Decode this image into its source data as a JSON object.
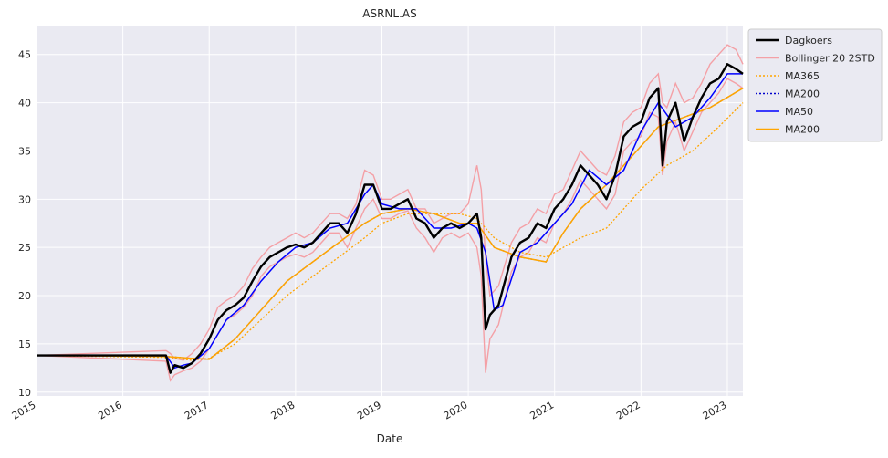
{
  "chart_data": {
    "type": "line",
    "title": "ASRNL.AS",
    "xlabel": "Date",
    "ylabel": "",
    "xlim": [
      2015.0,
      2023.18
    ],
    "ylim": [
      9.6,
      48.0
    ],
    "x_ticks": [
      {
        "value": 2015,
        "label": "2015"
      },
      {
        "value": 2016,
        "label": "2016"
      },
      {
        "value": 2017,
        "label": "2017"
      },
      {
        "value": 2018,
        "label": "2018"
      },
      {
        "value": 2019,
        "label": "2019"
      },
      {
        "value": 2020,
        "label": "2020"
      },
      {
        "value": 2021,
        "label": "2021"
      },
      {
        "value": 2022,
        "label": "2022"
      },
      {
        "value": 2023,
        "label": "2023"
      }
    ],
    "y_ticks": [
      {
        "value": 10,
        "label": "10"
      },
      {
        "value": 15,
        "label": "15"
      },
      {
        "value": 20,
        "label": "20"
      },
      {
        "value": 25,
        "label": "25"
      },
      {
        "value": 30,
        "label": "30"
      },
      {
        "value": 35,
        "label": "35"
      },
      {
        "value": 40,
        "label": "40"
      },
      {
        "value": 45,
        "label": "45"
      }
    ],
    "grid": true,
    "legend_position": "outside-top-right",
    "colors": {
      "plot_background": "#eaeaf2",
      "grid": "#ffffff",
      "dagkoers": "#000000",
      "bollinger": "#f4a0a6",
      "ma365": "#ffa500",
      "ma200_dotted": "#0000cc",
      "ma50": "#0000ff",
      "ma200": "#ffa500"
    },
    "series": [
      {
        "name": "Dagkoers",
        "style": "solid-thick",
        "x": [
          2015.0,
          2016.5,
          2016.55,
          2016.6,
          2016.7,
          2016.8,
          2016.9,
          2017.0,
          2017.1,
          2017.2,
          2017.3,
          2017.4,
          2017.5,
          2017.6,
          2017.7,
          2017.8,
          2017.9,
          2018.0,
          2018.1,
          2018.2,
          2018.3,
          2018.4,
          2018.5,
          2018.6,
          2018.7,
          2018.8,
          2018.9,
          2019.0,
          2019.1,
          2019.2,
          2019.3,
          2019.4,
          2019.5,
          2019.6,
          2019.7,
          2019.8,
          2019.9,
          2020.0,
          2020.1,
          2020.15,
          2020.2,
          2020.25,
          2020.35,
          2020.5,
          2020.6,
          2020.7,
          2020.8,
          2020.9,
          2021.0,
          2021.1,
          2021.2,
          2021.3,
          2021.4,
          2021.5,
          2021.6,
          2021.7,
          2021.8,
          2021.9,
          2022.0,
          2022.1,
          2022.2,
          2022.25,
          2022.3,
          2022.4,
          2022.5,
          2022.6,
          2022.7,
          2022.8,
          2022.9,
          2023.0,
          2023.1,
          2023.18
        ],
        "values": [
          13.8,
          13.8,
          12.0,
          12.8,
          12.5,
          13.0,
          14.0,
          15.5,
          17.5,
          18.5,
          19.0,
          19.8,
          21.5,
          23.0,
          24.0,
          24.5,
          25.0,
          25.3,
          25.0,
          25.5,
          26.5,
          27.5,
          27.5,
          26.5,
          28.5,
          31.5,
          31.5,
          29.0,
          29.0,
          29.5,
          30.0,
          28.0,
          27.5,
          26.0,
          27.0,
          27.5,
          27.0,
          27.5,
          28.5,
          26.0,
          16.5,
          18.0,
          19.0,
          24.0,
          25.5,
          26.0,
          27.5,
          27.0,
          29.0,
          30.0,
          31.5,
          33.5,
          32.5,
          31.5,
          30.0,
          32.5,
          36.5,
          37.5,
          38.0,
          40.5,
          41.5,
          33.5,
          38.0,
          40.0,
          36.0,
          38.5,
          40.5,
          42.0,
          42.5,
          44.0,
          43.5,
          43.0
        ]
      },
      {
        "name": "Bollinger 20 2STD",
        "style": "solid-pink-band",
        "x": [
          2015.0,
          2016.5,
          2016.55,
          2016.6,
          2016.7,
          2016.8,
          2016.9,
          2017.0,
          2017.1,
          2017.2,
          2017.3,
          2017.4,
          2017.5,
          2017.6,
          2017.7,
          2017.8,
          2017.9,
          2018.0,
          2018.1,
          2018.2,
          2018.3,
          2018.4,
          2018.5,
          2018.6,
          2018.7,
          2018.8,
          2018.9,
          2019.0,
          2019.1,
          2019.2,
          2019.3,
          2019.4,
          2019.5,
          2019.6,
          2019.7,
          2019.8,
          2019.9,
          2020.0,
          2020.1,
          2020.15,
          2020.2,
          2020.25,
          2020.35,
          2020.5,
          2020.6,
          2020.7,
          2020.8,
          2020.9,
          2021.0,
          2021.1,
          2021.2,
          2021.3,
          2021.4,
          2021.5,
          2021.6,
          2021.7,
          2021.8,
          2021.9,
          2022.0,
          2022.1,
          2022.2,
          2022.25,
          2022.3,
          2022.4,
          2022.5,
          2022.6,
          2022.7,
          2022.8,
          2022.9,
          2023.0,
          2023.1,
          2023.18
        ],
        "upper": [
          13.8,
          14.3,
          14.0,
          13.5,
          13.3,
          14.0,
          15.0,
          16.5,
          18.8,
          19.5,
          20.0,
          21.0,
          22.8,
          24.0,
          25.0,
          25.5,
          26.0,
          26.5,
          26.0,
          26.5,
          27.5,
          28.5,
          28.5,
          28.0,
          29.5,
          33.0,
          32.5,
          30.0,
          30.0,
          30.5,
          31.0,
          29.0,
          29.0,
          27.5,
          28.0,
          28.5,
          28.5,
          29.5,
          33.5,
          31.0,
          24.0,
          20.0,
          21.0,
          25.5,
          27.0,
          27.5,
          29.0,
          28.5,
          30.5,
          31.0,
          33.0,
          35.0,
          34.0,
          33.0,
          32.5,
          34.5,
          38.0,
          39.0,
          39.5,
          42.0,
          43.0,
          40.0,
          39.5,
          42.0,
          40.0,
          40.5,
          42.0,
          44.0,
          45.0,
          46.0,
          45.5,
          44.0
        ],
        "lower": [
          13.8,
          13.2,
          11.2,
          11.8,
          12.2,
          12.5,
          13.2,
          14.5,
          16.0,
          17.5,
          18.0,
          18.8,
          20.0,
          22.0,
          23.0,
          23.5,
          24.0,
          24.3,
          24.0,
          24.5,
          25.5,
          26.5,
          26.5,
          25.0,
          27.0,
          29.0,
          30.0,
          28.0,
          28.0,
          28.5,
          28.8,
          27.0,
          26.0,
          24.5,
          26.0,
          26.5,
          26.0,
          26.5,
          25.0,
          22.0,
          12.0,
          15.5,
          17.0,
          22.5,
          24.0,
          24.5,
          26.0,
          25.5,
          27.5,
          28.5,
          30.0,
          32.0,
          31.0,
          30.0,
          29.0,
          30.5,
          35.0,
          36.0,
          36.5,
          39.0,
          38.5,
          32.5,
          36.0,
          38.0,
          35.0,
          37.0,
          39.0,
          40.0,
          41.0,
          42.5,
          42.0,
          41.5
        ]
      },
      {
        "name": "MA365",
        "style": "dotted",
        "x": [
          2015.0,
          2016.5,
          2016.8,
          2017.0,
          2017.3,
          2017.6,
          2017.9,
          2018.2,
          2018.5,
          2018.8,
          2019.0,
          2019.3,
          2019.6,
          2019.9,
          2020.1,
          2020.3,
          2020.6,
          2020.9,
          2021.1,
          2021.3,
          2021.6,
          2021.7,
          2022.0,
          2022.3,
          2022.6,
          2022.9,
          2023.18
        ],
        "values": [
          13.8,
          13.6,
          13.3,
          13.5,
          15.0,
          17.5,
          20.0,
          22.0,
          24.0,
          26.0,
          27.5,
          28.5,
          28.5,
          28.5,
          28.0,
          26.0,
          24.5,
          24.0,
          25.0,
          26.0,
          27.0,
          28.0,
          31.0,
          33.5,
          35.0,
          37.5,
          40.0
        ]
      },
      {
        "name": "MA200",
        "style": "dotted-blue",
        "x": [
          2015.0,
          2016.5,
          2016.8,
          2017.0,
          2017.3,
          2017.6,
          2017.9,
          2018.2,
          2018.5,
          2018.8,
          2019.0,
          2019.3,
          2019.6,
          2019.9,
          2020.1,
          2020.3,
          2020.6,
          2020.9,
          2021.1,
          2021.3,
          2021.6,
          2021.9,
          2022.2,
          2022.5,
          2022.8,
          2023.18
        ],
        "values": [
          13.8,
          13.7,
          13.5,
          13.4,
          15.5,
          18.5,
          21.5,
          23.5,
          25.5,
          27.5,
          28.5,
          29.0,
          28.5,
          27.5,
          27.5,
          25.0,
          24.0,
          23.5,
          26.5,
          29.0,
          31.5,
          34.5,
          37.5,
          38.5,
          39.5,
          41.5
        ]
      },
      {
        "name": "MA50",
        "style": "solid",
        "x": [
          2015.0,
          2016.5,
          2016.6,
          2016.7,
          2016.8,
          2017.0,
          2017.2,
          2017.4,
          2017.6,
          2017.8,
          2018.0,
          2018.2,
          2018.4,
          2018.6,
          2018.8,
          2018.9,
          2019.0,
          2019.2,
          2019.4,
          2019.6,
          2019.8,
          2020.0,
          2020.1,
          2020.2,
          2020.3,
          2020.4,
          2020.6,
          2020.8,
          2021.0,
          2021.2,
          2021.4,
          2021.6,
          2021.8,
          2022.0,
          2022.2,
          2022.4,
          2022.6,
          2022.8,
          2023.0,
          2023.18
        ],
        "values": [
          13.8,
          13.8,
          12.5,
          12.8,
          13.0,
          14.5,
          17.5,
          19.0,
          21.5,
          23.5,
          25.0,
          25.5,
          27.0,
          27.5,
          30.5,
          31.5,
          29.5,
          29.0,
          29.0,
          27.0,
          27.0,
          27.5,
          27.0,
          24.5,
          18.5,
          19.0,
          24.5,
          25.5,
          27.5,
          29.5,
          33.0,
          31.5,
          33.0,
          37.0,
          40.0,
          37.5,
          38.5,
          40.5,
          43.0,
          43.0
        ]
      },
      {
        "name": "MA200",
        "style": "solid",
        "x": [
          2015.0,
          2016.5,
          2016.8,
          2017.0,
          2017.3,
          2017.6,
          2017.9,
          2018.2,
          2018.5,
          2018.8,
          2019.0,
          2019.3,
          2019.6,
          2019.9,
          2020.1,
          2020.3,
          2020.6,
          2020.9,
          2021.1,
          2021.3,
          2021.6,
          2021.9,
          2022.2,
          2022.5,
          2022.8,
          2023.18
        ],
        "values": [
          13.8,
          13.7,
          13.5,
          13.4,
          15.5,
          18.5,
          21.5,
          23.5,
          25.5,
          27.5,
          28.5,
          29.0,
          28.5,
          27.5,
          27.5,
          25.0,
          24.0,
          23.5,
          26.5,
          29.0,
          31.5,
          34.5,
          37.5,
          38.5,
          39.5,
          41.5
        ]
      }
    ],
    "legend": [
      {
        "label": "Dagkoers",
        "color": "#000000",
        "style": "solid-thick"
      },
      {
        "label": "Bollinger 20 2STD",
        "color": "#f4a0a6",
        "style": "solid"
      },
      {
        "label": "MA365",
        "color": "#ffa500",
        "style": "dotted"
      },
      {
        "label": "MA200",
        "color": "#0000cc",
        "style": "dotted"
      },
      {
        "label": "MA50",
        "color": "#0000ff",
        "style": "solid"
      },
      {
        "label": "MA200",
        "color": "#ffa500",
        "style": "solid"
      }
    ]
  }
}
